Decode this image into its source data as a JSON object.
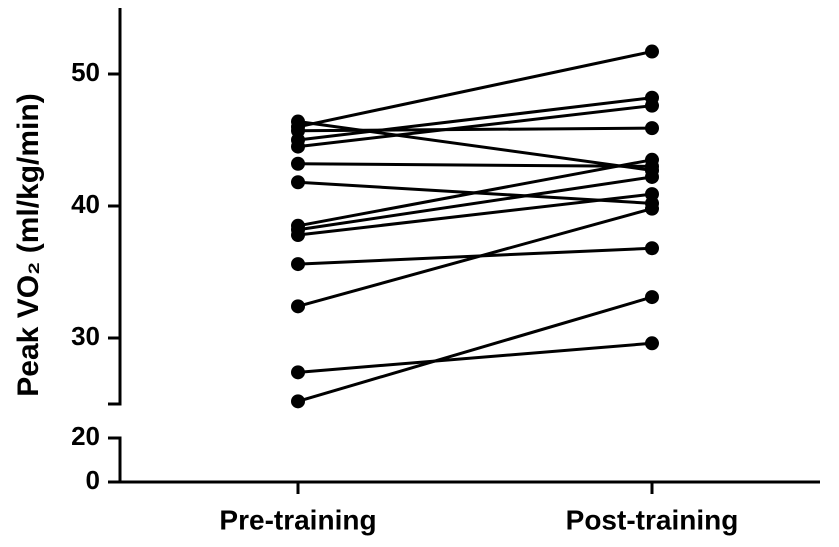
{
  "chart_data": {
    "type": "line",
    "y_label": "Peak VO₂ (ml/kg/min)",
    "categories": [
      "Pre-training",
      "Post-training"
    ],
    "color": "#000000",
    "y_segments": [
      {
        "ylim": [
          0,
          20
        ],
        "yticks": [
          0,
          20
        ]
      },
      {
        "ylim": [
          25,
          55
        ],
        "yticks": [
          30,
          40,
          50
        ]
      }
    ],
    "series": [
      {
        "values": [
          46.4,
          42.7
        ]
      },
      {
        "values": [
          46.0,
          51.7
        ]
      },
      {
        "values": [
          45.7,
          45.9
        ]
      },
      {
        "values": [
          45.0,
          48.2
        ]
      },
      {
        "values": [
          44.5,
          47.6
        ]
      },
      {
        "values": [
          43.2,
          43.0
        ]
      },
      {
        "values": [
          41.8,
          40.2
        ]
      },
      {
        "values": [
          38.5,
          43.5
        ]
      },
      {
        "values": [
          38.2,
          42.2
        ]
      },
      {
        "values": [
          37.8,
          40.9
        ]
      },
      {
        "values": [
          35.6,
          36.8
        ]
      },
      {
        "values": [
          32.4,
          39.8
        ]
      },
      {
        "values": [
          27.4,
          29.6
        ]
      },
      {
        "values": [
          25.2,
          33.1
        ]
      }
    ]
  }
}
